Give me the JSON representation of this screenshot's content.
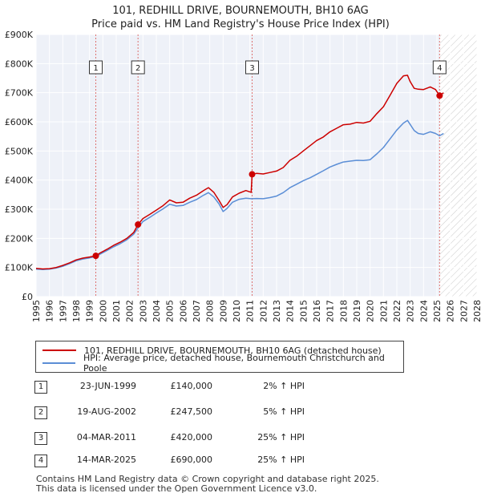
{
  "chart_data": {
    "type": "line",
    "title": "101, REDHILL DRIVE, BOURNEMOUTH, BH10 6AG",
    "subtitle": "Price paid vs. HM Land Registry's House Price Index (HPI)",
    "xlim": [
      1995,
      2028
    ],
    "ylim": [
      0,
      900000
    ],
    "x_ticks": [
      "1995",
      "1996",
      "1997",
      "1998",
      "1999",
      "2000",
      "2001",
      "2002",
      "2003",
      "2004",
      "2005",
      "2006",
      "2007",
      "2008",
      "2009",
      "2010",
      "2011",
      "2012",
      "2013",
      "2014",
      "2015",
      "2016",
      "2017",
      "2018",
      "2019",
      "2020",
      "2021",
      "2022",
      "2023",
      "2024",
      "2025",
      "2026",
      "2027",
      "2028"
    ],
    "y_ticks": [
      {
        "value": 0,
        "label": "£0"
      },
      {
        "value": 100000,
        "label": "£100K"
      },
      {
        "value": 200000,
        "label": "£200K"
      },
      {
        "value": 300000,
        "label": "£300K"
      },
      {
        "value": 400000,
        "label": "£400K"
      },
      {
        "value": 500000,
        "label": "£500K"
      },
      {
        "value": 600000,
        "label": "£600K"
      },
      {
        "value": 700000,
        "label": "£700K"
      },
      {
        "value": 800000,
        "label": "£800K"
      },
      {
        "value": 900000,
        "label": "£900K"
      }
    ],
    "grid": true,
    "shaded_from": 2025.2,
    "series": [
      {
        "name": "101, REDHILL DRIVE, BOURNEMOUTH, BH10 6AG (detached house)",
        "color": "#cc0000",
        "x": [
          1995.0,
          1995.5,
          1996.0,
          1996.5,
          1997.0,
          1997.5,
          1998.0,
          1998.5,
          1999.0,
          1999.47,
          1999.8,
          2000.3,
          2000.8,
          2001.3,
          2001.8,
          2002.3,
          2002.63,
          2003.0,
          2003.5,
          2004.0,
          2004.5,
          2005.0,
          2005.5,
          2006.0,
          2006.5,
          2007.0,
          2007.5,
          2007.9,
          2008.3,
          2008.7,
          2009.0,
          2009.3,
          2009.7,
          2010.2,
          2010.7,
          2011.1,
          2011.17,
          2011.5,
          2012.0,
          2012.5,
          2013.0,
          2013.5,
          2014.0,
          2014.5,
          2015.0,
          2015.5,
          2016.0,
          2016.5,
          2017.0,
          2017.5,
          2018.0,
          2018.5,
          2019.0,
          2019.5,
          2020.0,
          2020.5,
          2021.0,
          2021.5,
          2022.0,
          2022.5,
          2022.8,
          2023.0,
          2023.3,
          2023.6,
          2024.0,
          2024.5,
          2024.9,
          2025.2,
          2025.5
        ],
        "values": [
          97000,
          95000,
          96000,
          100000,
          107000,
          116000,
          126000,
          132000,
          136000,
          140000,
          150000,
          162000,
          176000,
          187000,
          200000,
          220000,
          247500,
          268000,
          282000,
          297000,
          312000,
          332000,
          322000,
          324000,
          338000,
          348000,
          363000,
          374000,
          358000,
          330000,
          306000,
          316000,
          342000,
          355000,
          364000,
          358000,
          420000,
          423000,
          421000,
          426000,
          431000,
          443000,
          468000,
          482000,
          500000,
          518000,
          536000,
          548000,
          566000,
          578000,
          590000,
          592000,
          598000,
          596000,
          602000,
          628000,
          652000,
          692000,
          732000,
          758000,
          760000,
          738000,
          715000,
          712000,
          711000,
          720000,
          711000,
          690000,
          700000
        ]
      },
      {
        "name": "HPI: Average price, detached house, Bournemouth Christchurch and Poole",
        "color": "#5b8ed6",
        "x": [
          1995.0,
          1995.5,
          1996.0,
          1996.5,
          1997.0,
          1997.5,
          1998.0,
          1998.5,
          1999.0,
          1999.47,
          1999.8,
          2000.3,
          2000.8,
          2001.3,
          2001.8,
          2002.3,
          2002.63,
          2003.0,
          2003.5,
          2004.0,
          2004.5,
          2005.0,
          2005.5,
          2006.0,
          2006.5,
          2007.0,
          2007.5,
          2007.9,
          2008.3,
          2008.7,
          2009.0,
          2009.3,
          2009.7,
          2010.2,
          2010.7,
          2011.1,
          2011.17,
          2011.5,
          2012.0,
          2012.5,
          2013.0,
          2013.5,
          2014.0,
          2014.5,
          2015.0,
          2015.5,
          2016.0,
          2016.5,
          2017.0,
          2017.5,
          2018.0,
          2018.5,
          2019.0,
          2019.5,
          2020.0,
          2020.5,
          2021.0,
          2021.5,
          2022.0,
          2022.5,
          2022.8,
          2023.0,
          2023.3,
          2023.6,
          2024.0,
          2024.5,
          2024.9,
          2025.2,
          2025.5
        ],
        "values": [
          94000,
          93000,
          94000,
          98000,
          104000,
          113000,
          123000,
          129000,
          133000,
          137000,
          146000,
          158000,
          171000,
          182000,
          195000,
          214000,
          236000,
          258000,
          272000,
          287000,
          301000,
          317000,
          311000,
          313000,
          324000,
          333000,
          347000,
          357000,
          342000,
          318000,
          292000,
          303000,
          324000,
          334000,
          338000,
          336000,
          336000,
          337000,
          336000,
          340000,
          345000,
          357000,
          374000,
          386000,
          398000,
          408000,
          420000,
          432000,
          445000,
          454000,
          462000,
          465000,
          468000,
          467000,
          470000,
          490000,
          512000,
          542000,
          572000,
          596000,
          605000,
          591000,
          570000,
          560000,
          557000,
          566000,
          560000,
          552000,
          560000
        ]
      }
    ],
    "markers": [
      {
        "label": "1",
        "x": 1999.47,
        "y": 140000
      },
      {
        "label": "2",
        "x": 2002.63,
        "y": 247500
      },
      {
        "label": "3",
        "x": 2011.17,
        "y": 420000
      },
      {
        "label": "4",
        "x": 2025.2,
        "y": 690000
      }
    ]
  },
  "legend": {
    "property_label": "101, REDHILL DRIVE, BOURNEMOUTH, BH10 6AG (detached house)",
    "hpi_label": "HPI: Average price, detached house, Bournemouth Christchurch and Poole"
  },
  "sales": [
    {
      "num": "1",
      "date": "23-JUN-1999",
      "price": "£140,000",
      "hpi": "2% ↑ HPI"
    },
    {
      "num": "2",
      "date": "19-AUG-2002",
      "price": "£247,500",
      "hpi": "5% ↑ HPI"
    },
    {
      "num": "3",
      "date": "04-MAR-2011",
      "price": "£420,000",
      "hpi": "25% ↑ HPI"
    },
    {
      "num": "4",
      "date": "14-MAR-2025",
      "price": "£690,000",
      "hpi": "25% ↑ HPI"
    }
  ],
  "footer": {
    "line1": "Contains HM Land Registry data © Crown copyright and database right 2025.",
    "line2": "This data is licensed under the Open Government Licence v3.0."
  },
  "colors": {
    "property": "#cc0000",
    "hpi": "#5b8ed6",
    "marker_line": "#cc0000"
  }
}
